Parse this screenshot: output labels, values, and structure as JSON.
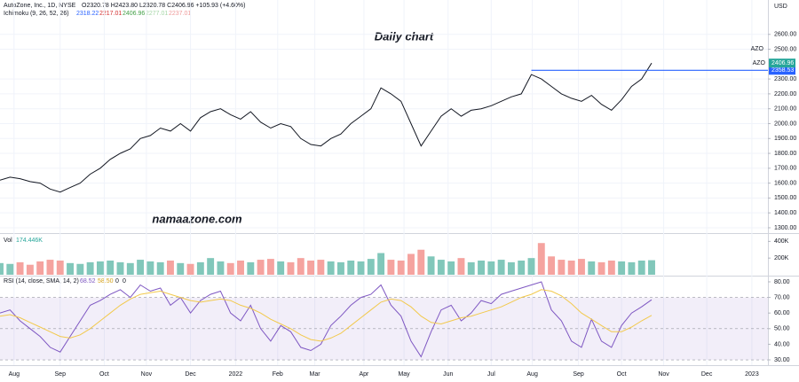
{
  "header": {
    "symbol": "AutoZone, Inc., 1D, NYSE",
    "ohlc": "O2320.78 H2423.80 L2320.78 C2406.96 +105.93 (+4.60%)",
    "ichimoku_label": "Ichimoku (9, 26, 52, 26)",
    "ichimoku_values": [
      "2318.22",
      "2217.01",
      "2406.96",
      "2277.01",
      "2237.01"
    ],
    "ichimoku_colors": [
      "#2962ff",
      "#d32f2f",
      "#43a047",
      "#a5d6a7",
      "#ef9a9a"
    ]
  },
  "chart_data": [
    {
      "type": "line",
      "title": "Daily chart",
      "annotation": "namaazone.com",
      "unit": "USD",
      "x": [
        0,
        1,
        2,
        3,
        4,
        5,
        6,
        7,
        8,
        9,
        10,
        11,
        12,
        13,
        14,
        15,
        16,
        17,
        18,
        19,
        20,
        21,
        22,
        23,
        24,
        25,
        26,
        27,
        28,
        29,
        30,
        31,
        32,
        33,
        34,
        35,
        36,
        37,
        38,
        39,
        40,
        41,
        42,
        43,
        44,
        45,
        46,
        47,
        48,
        49,
        50,
        51,
        52,
        53,
        54,
        55,
        56,
        57,
        58,
        59,
        60,
        61,
        62,
        63,
        64,
        65
      ],
      "series": [
        {
          "name": "AZO",
          "color": "#131722",
          "values": [
            1620,
            1640,
            1630,
            1610,
            1600,
            1560,
            1540,
            1570,
            1600,
            1660,
            1700,
            1760,
            1800,
            1830,
            1900,
            1920,
            1970,
            1950,
            2000,
            1950,
            2040,
            2080,
            2100,
            2060,
            2030,
            2080,
            2010,
            1970,
            2000,
            1980,
            1900,
            1860,
            1850,
            1900,
            1930,
            2000,
            2050,
            2100,
            2240,
            2200,
            2150,
            2000,
            1850,
            1950,
            2050,
            2100,
            2050,
            2090,
            2100,
            2120,
            2150,
            2180,
            2200,
            2330,
            2300,
            2250,
            2200,
            2170,
            2150,
            2190,
            2130,
            2090,
            2160,
            2250,
            2300,
            2406.96
          ]
        }
      ],
      "last_price": 2406.96,
      "up_color": "#26a69a",
      "price_line": {
        "value": 2358.53,
        "label": "AZO",
        "color": "#2962ff",
        "from_x": 53
      },
      "xlim": [
        0,
        76.6
      ],
      "xticks": [
        {
          "value": 1.4,
          "label": "Aug"
        },
        {
          "value": 6,
          "label": "Sep"
        },
        {
          "value": 10.4,
          "label": "Oct"
        },
        {
          "value": 14.6,
          "label": "Nov"
        },
        {
          "value": 19,
          "label": "Dec"
        },
        {
          "value": 23.5,
          "label": "2022"
        },
        {
          "value": 27.7,
          "label": "Feb"
        },
        {
          "value": 31.4,
          "label": "Mar"
        },
        {
          "value": 36.3,
          "label": "Apr"
        },
        {
          "value": 40.3,
          "label": "May"
        },
        {
          "value": 44.7,
          "label": "Jun"
        },
        {
          "value": 49,
          "label": "Jul"
        },
        {
          "value": 53.1,
          "label": "Aug"
        },
        {
          "value": 57.7,
          "label": "Sep"
        },
        {
          "value": 62,
          "label": "Oct"
        },
        {
          "value": 66.2,
          "label": "Nov"
        },
        {
          "value": 70.5,
          "label": "Dec"
        },
        {
          "value": 75,
          "label": "2023"
        }
      ],
      "ylim": [
        1270,
        2831
      ],
      "yticks": [
        {
          "value": 1300,
          "label": "1300.00"
        },
        {
          "value": 1400,
          "label": "1400.00"
        },
        {
          "value": 1500,
          "label": "1500.00"
        },
        {
          "value": 1600,
          "label": "1600.00"
        },
        {
          "value": 1700,
          "label": "1700.00"
        },
        {
          "value": 1800,
          "label": "1800.00"
        },
        {
          "value": 1900,
          "label": "1900.00"
        },
        {
          "value": 2000,
          "label": "2000.00"
        },
        {
          "value": 2100,
          "label": "2100.00"
        },
        {
          "value": 2200,
          "label": "2200.00"
        },
        {
          "value": 2300,
          "label": "2300.00"
        },
        {
          "value": 2500,
          "label": "2500.00"
        },
        {
          "value": 2600,
          "label": "2600.00"
        }
      ],
      "grid": true
    },
    {
      "type": "bar",
      "title": "Vol",
      "subtitle": "174.446K",
      "up_color": "#81c7ba",
      "down_color": "#f5a39f",
      "values": [
        140000,
        130000,
        150000,
        120000,
        160000,
        180000,
        170000,
        140000,
        130000,
        150000,
        160000,
        170000,
        150000,
        140000,
        180000,
        160000,
        150000,
        170000,
        140000,
        130000,
        150000,
        200000,
        160000,
        140000,
        170000,
        150000,
        180000,
        190000,
        160000,
        150000,
        200000,
        170000,
        180000,
        160000,
        150000,
        170000,
        160000,
        190000,
        260000,
        180000,
        170000,
        250000,
        300000,
        220000,
        180000,
        160000,
        200000,
        150000,
        170000,
        160000,
        180000,
        150000,
        170000,
        200000,
        380000,
        220000,
        180000,
        170000,
        190000,
        160000,
        150000,
        170000,
        160000,
        150000,
        170000,
        174446
      ],
      "ylim": [
        0,
        478000
      ],
      "yticks": [
        {
          "value": 200000,
          "label": "200K"
        },
        {
          "value": 400000,
          "label": "400K"
        }
      ]
    },
    {
      "type": "line",
      "title": "RSI (14, close, SMA, 14, 2)",
      "legend_values": [
        "68.52",
        "58.50",
        "0",
        "0"
      ],
      "series": [
        {
          "name": "RSI",
          "color": "#7e57c2",
          "values": [
            60,
            62,
            55,
            50,
            45,
            38,
            35,
            45,
            55,
            65,
            68,
            72,
            75,
            70,
            78,
            74,
            76,
            65,
            70,
            60,
            68,
            72,
            74,
            60,
            55,
            65,
            50,
            42,
            52,
            48,
            38,
            36,
            40,
            52,
            58,
            65,
            70,
            72,
            78,
            65,
            58,
            42,
            32,
            48,
            62,
            65,
            55,
            60,
            68,
            66,
            72,
            74,
            76,
            78,
            80,
            62,
            55,
            42,
            38,
            56,
            42,
            38,
            52,
            60,
            64,
            68.52
          ]
        },
        {
          "name": "SMA",
          "color": "#f2c94c",
          "values": [
            58,
            59,
            57,
            54,
            51,
            48,
            45,
            44,
            46,
            50,
            55,
            60,
            65,
            69,
            72,
            73,
            74,
            72,
            70,
            68,
            67,
            68,
            69,
            68,
            65,
            63,
            60,
            56,
            53,
            50,
            46,
            43,
            42,
            44,
            47,
            52,
            57,
            62,
            67,
            69,
            68,
            64,
            58,
            54,
            53,
            55,
            57,
            58,
            60,
            62,
            64,
            67,
            70,
            72,
            75,
            74,
            71,
            66,
            60,
            56,
            52,
            48,
            48,
            51,
            55,
            58.5
          ]
        }
      ],
      "levels": [
        30,
        50,
        70
      ],
      "ylim": [
        26.6,
        83.4
      ],
      "yticks": [
        {
          "value": 30,
          "label": "30.00"
        },
        {
          "value": 40,
          "label": "40.00"
        },
        {
          "value": 50,
          "label": "50.00"
        },
        {
          "value": 60,
          "label": "60.00"
        },
        {
          "value": 70,
          "label": "70.00"
        },
        {
          "value": 80,
          "label": "80.00"
        }
      ]
    }
  ]
}
